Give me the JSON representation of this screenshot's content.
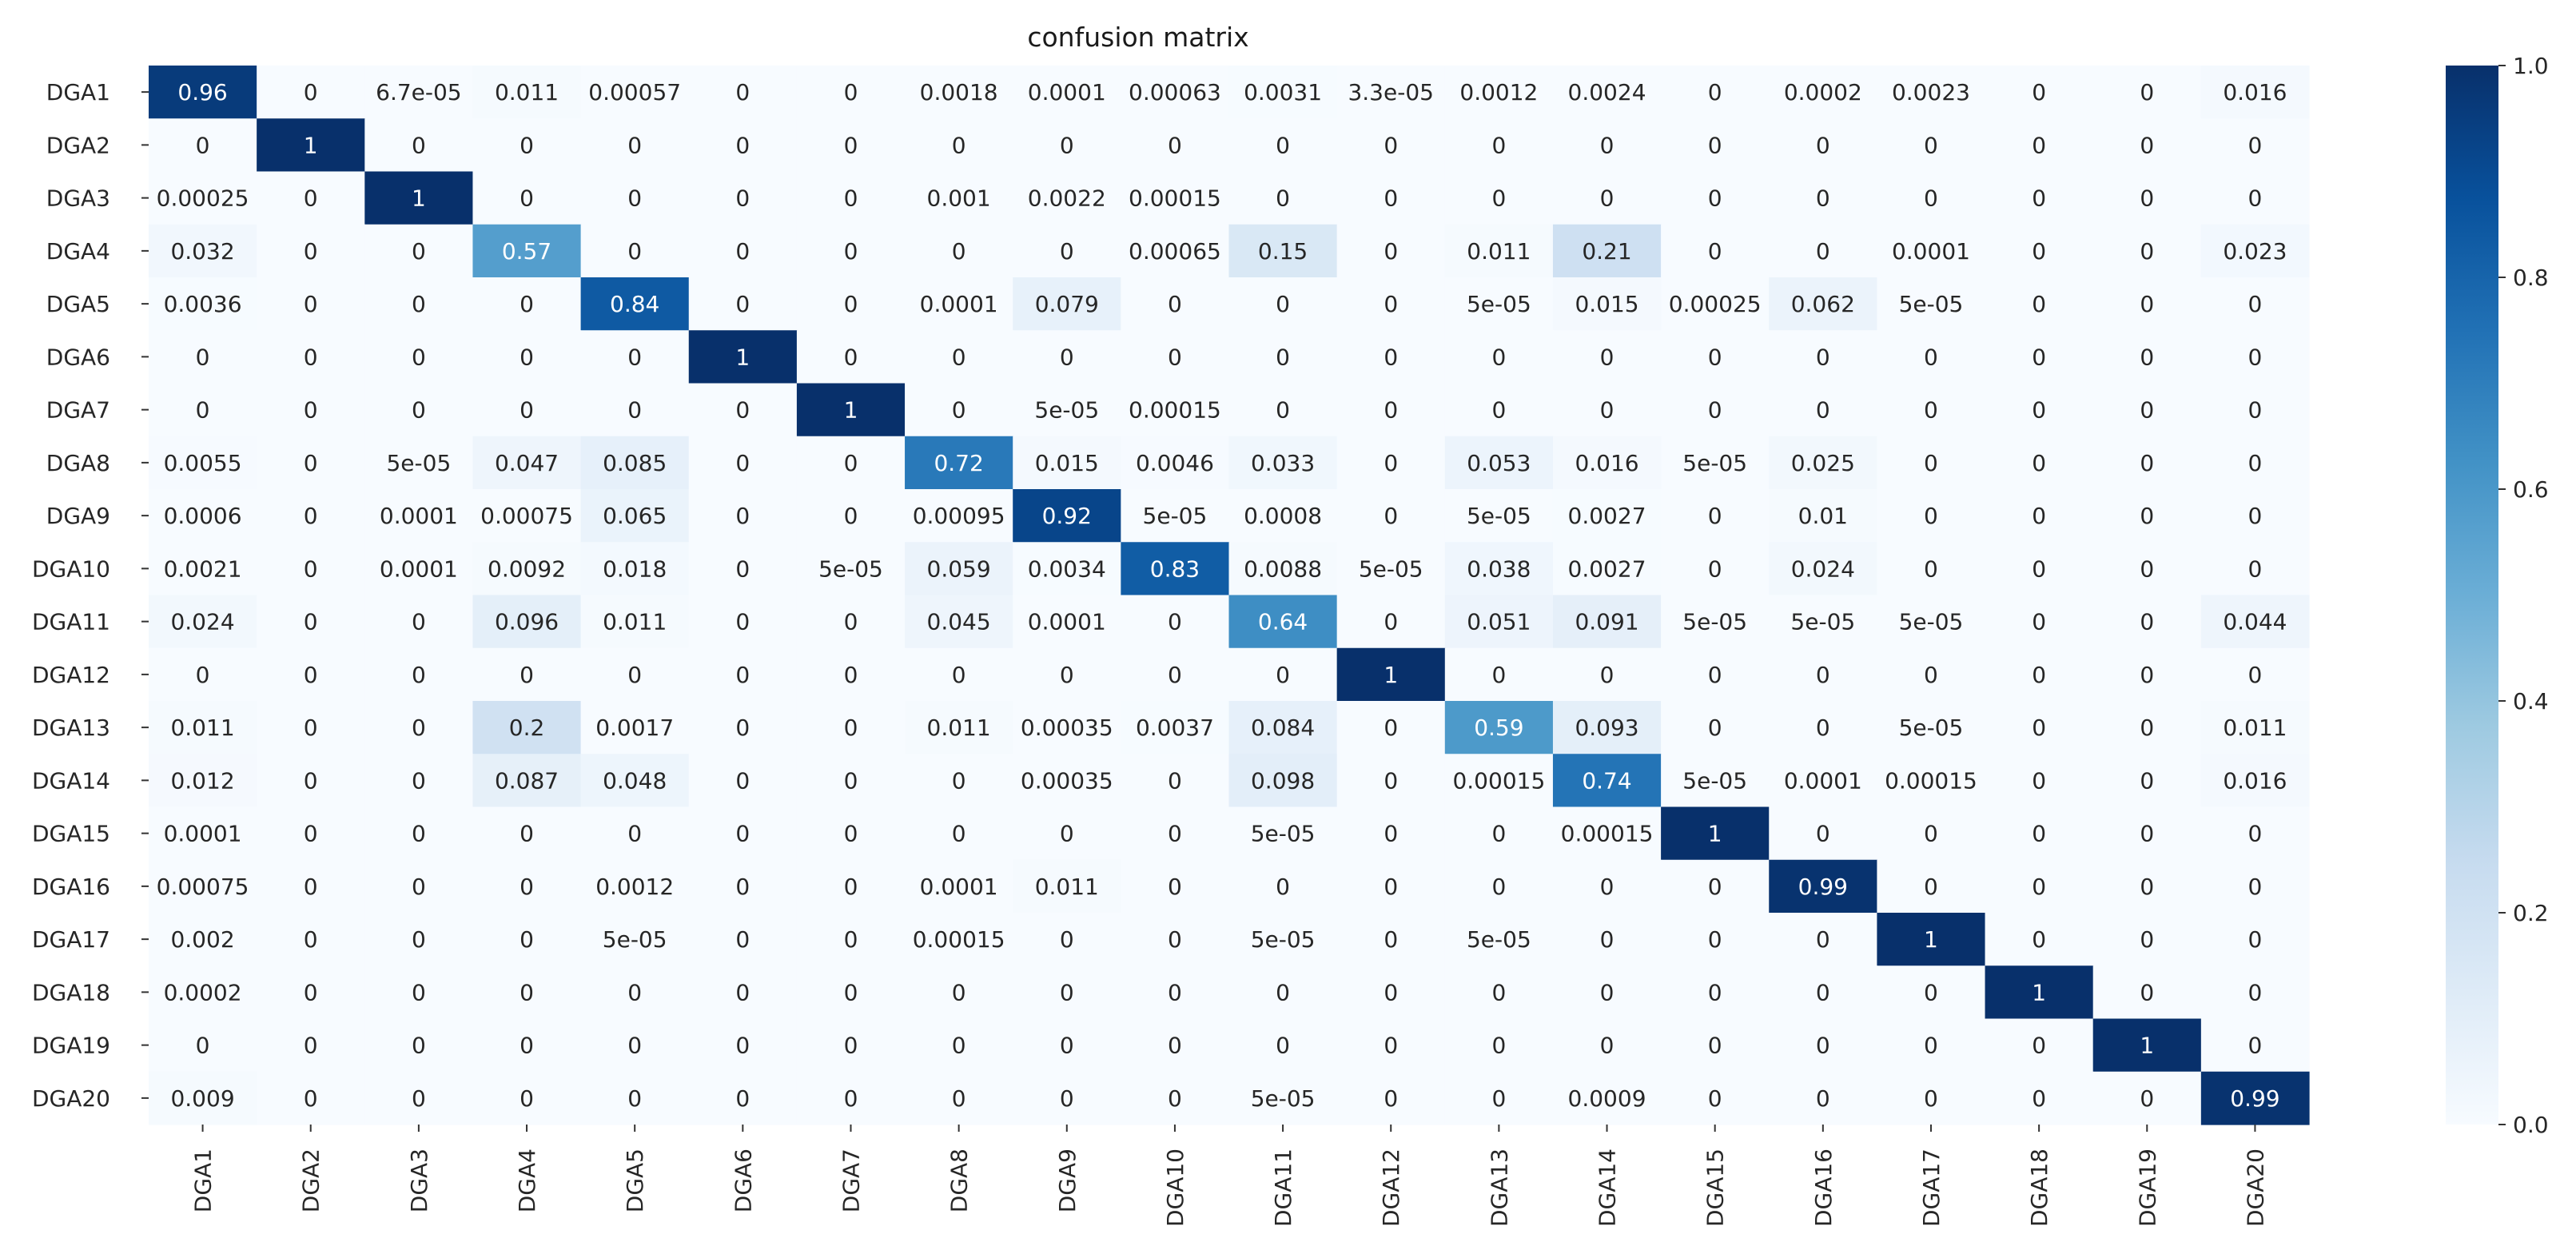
{
  "chart_data": {
    "type": "heatmap",
    "title": "confusion matrix",
    "xlabel": "",
    "ylabel": "",
    "row_labels": [
      "DGA1",
      "DGA2",
      "DGA3",
      "DGA4",
      "DGA5",
      "DGA6",
      "DGA7",
      "DGA8",
      "DGA9",
      "DGA10",
      "DGA11",
      "DGA12",
      "DGA13",
      "DGA14",
      "DGA15",
      "DGA16",
      "DGA17",
      "DGA18",
      "DGA19",
      "DGA20"
    ],
    "col_labels": [
      "DGA1",
      "DGA2",
      "DGA3",
      "DGA4",
      "DGA5",
      "DGA6",
      "DGA7",
      "DGA8",
      "DGA9",
      "DGA10",
      "DGA11",
      "DGA12",
      "DGA13",
      "DGA14",
      "DGA15",
      "DGA16",
      "DGA17",
      "DGA18",
      "DGA19",
      "DGA20"
    ],
    "cells": [
      [
        "0.96",
        "0",
        "6.7e-05",
        "0.011",
        "0.00057",
        "0",
        "0",
        "0.0018",
        "0.0001",
        "0.00063",
        "0.0031",
        "3.3e-05",
        "0.0012",
        "0.0024",
        "0",
        "0.0002",
        "0.0023",
        "0",
        "0",
        "0.016"
      ],
      [
        "0",
        "1",
        "0",
        "0",
        "0",
        "0",
        "0",
        "0",
        "0",
        "0",
        "0",
        "0",
        "0",
        "0",
        "0",
        "0",
        "0",
        "0",
        "0",
        "0"
      ],
      [
        "0.00025",
        "0",
        "1",
        "0",
        "0",
        "0",
        "0",
        "0.001",
        "0.0022",
        "0.00015",
        "0",
        "0",
        "0",
        "0",
        "0",
        "0",
        "0",
        "0",
        "0",
        "0"
      ],
      [
        "0.032",
        "0",
        "0",
        "0.57",
        "0",
        "0",
        "0",
        "0",
        "0",
        "0.00065",
        "0.15",
        "0",
        "0.011",
        "0.21",
        "0",
        "0",
        "0.0001",
        "0",
        "0",
        "0.023"
      ],
      [
        "0.0036",
        "0",
        "0",
        "0",
        "0.84",
        "0",
        "0",
        "0.0001",
        "0.079",
        "0",
        "0",
        "0",
        "5e-05",
        "0.015",
        "0.00025",
        "0.062",
        "5e-05",
        "0",
        "0",
        "0"
      ],
      [
        "0",
        "0",
        "0",
        "0",
        "0",
        "1",
        "0",
        "0",
        "0",
        "0",
        "0",
        "0",
        "0",
        "0",
        "0",
        "0",
        "0",
        "0",
        "0",
        "0"
      ],
      [
        "0",
        "0",
        "0",
        "0",
        "0",
        "0",
        "1",
        "0",
        "5e-05",
        "0.00015",
        "0",
        "0",
        "0",
        "0",
        "0",
        "0",
        "0",
        "0",
        "0",
        "0"
      ],
      [
        "0.0055",
        "0",
        "5e-05",
        "0.047",
        "0.085",
        "0",
        "0",
        "0.72",
        "0.015",
        "0.0046",
        "0.033",
        "0",
        "0.053",
        "0.016",
        "5e-05",
        "0.025",
        "0",
        "0",
        "0",
        "0"
      ],
      [
        "0.0006",
        "0",
        "0.0001",
        "0.00075",
        "0.065",
        "0",
        "0",
        "0.00095",
        "0.92",
        "5e-05",
        "0.0008",
        "0",
        "5e-05",
        "0.0027",
        "0",
        "0.01",
        "0",
        "0",
        "0",
        "0"
      ],
      [
        "0.0021",
        "0",
        "0.0001",
        "0.0092",
        "0.018",
        "0",
        "5e-05",
        "0.059",
        "0.0034",
        "0.83",
        "0.0088",
        "5e-05",
        "0.038",
        "0.0027",
        "0",
        "0.024",
        "0",
        "0",
        "0",
        "0"
      ],
      [
        "0.024",
        "0",
        "0",
        "0.096",
        "0.011",
        "0",
        "0",
        "0.045",
        "0.0001",
        "0",
        "0.64",
        "0",
        "0.051",
        "0.091",
        "5e-05",
        "5e-05",
        "5e-05",
        "0",
        "0",
        "0.044"
      ],
      [
        "0",
        "0",
        "0",
        "0",
        "0",
        "0",
        "0",
        "0",
        "0",
        "0",
        "0",
        "1",
        "0",
        "0",
        "0",
        "0",
        "0",
        "0",
        "0",
        "0"
      ],
      [
        "0.011",
        "0",
        "0",
        "0.2",
        "0.0017",
        "0",
        "0",
        "0.011",
        "0.00035",
        "0.0037",
        "0.084",
        "0",
        "0.59",
        "0.093",
        "0",
        "0",
        "5e-05",
        "0",
        "0",
        "0.011"
      ],
      [
        "0.012",
        "0",
        "0",
        "0.087",
        "0.048",
        "0",
        "0",
        "0",
        "0.00035",
        "0",
        "0.098",
        "0",
        "0.00015",
        "0.74",
        "5e-05",
        "0.0001",
        "0.00015",
        "0",
        "0",
        "0.016"
      ],
      [
        "0.0001",
        "0",
        "0",
        "0",
        "0",
        "0",
        "0",
        "0",
        "0",
        "0",
        "5e-05",
        "0",
        "0",
        "0.00015",
        "1",
        "0",
        "0",
        "0",
        "0",
        "0"
      ],
      [
        "0.00075",
        "0",
        "0",
        "0",
        "0.0012",
        "0",
        "0",
        "0.0001",
        "0.011",
        "0",
        "0",
        "0",
        "0",
        "0",
        "0",
        "0.99",
        "0",
        "0",
        "0",
        "0"
      ],
      [
        "0.002",
        "0",
        "0",
        "0",
        "5e-05",
        "0",
        "0",
        "0.00015",
        "0",
        "0",
        "5e-05",
        "0",
        "5e-05",
        "0",
        "0",
        "0",
        "1",
        "0",
        "0",
        "0"
      ],
      [
        "0.0002",
        "0",
        "0",
        "0",
        "0",
        "0",
        "0",
        "0",
        "0",
        "0",
        "0",
        "0",
        "0",
        "0",
        "0",
        "0",
        "0",
        "1",
        "0",
        "0"
      ],
      [
        "0",
        "0",
        "0",
        "0",
        "0",
        "0",
        "0",
        "0",
        "0",
        "0",
        "0",
        "0",
        "0",
        "0",
        "0",
        "0",
        "0",
        "0",
        "1",
        "0"
      ],
      [
        "0.009",
        "0",
        "0",
        "0",
        "0",
        "0",
        "0",
        "0",
        "0",
        "0",
        "5e-05",
        "0",
        "0",
        "0.0009",
        "0",
        "0",
        "0",
        "0",
        "0",
        "0.99"
      ]
    ],
    "value_range": [
      0.0,
      1.0
    ],
    "colormap": "Blues",
    "colorbar": {
      "ticks": [
        0.0,
        0.2,
        0.4,
        0.6,
        0.8,
        1.0
      ],
      "tick_labels": [
        "0.0",
        "0.2",
        "0.4",
        "0.6",
        "0.8",
        "1.0"
      ],
      "placement": "right"
    },
    "grid": false,
    "annotations": "cell values"
  }
}
